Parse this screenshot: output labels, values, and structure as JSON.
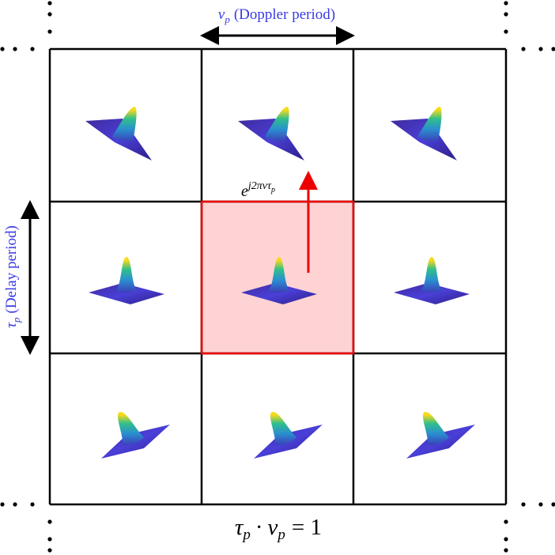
{
  "top_label": {
    "symbol": "ν",
    "subscript": "p",
    "text": "(Doppler period)"
  },
  "left_label": {
    "symbol": "τ",
    "subscript": "p",
    "text": "(Delay period)"
  },
  "phase": {
    "base": "e",
    "exponent": "j2πντ",
    "exponent_subscript": "p"
  },
  "formula": {
    "tau": "τ",
    "tau_sub": "p",
    "dot": "·",
    "nu": "ν",
    "nu_sub": "p",
    "equals": "= 1"
  }
}
